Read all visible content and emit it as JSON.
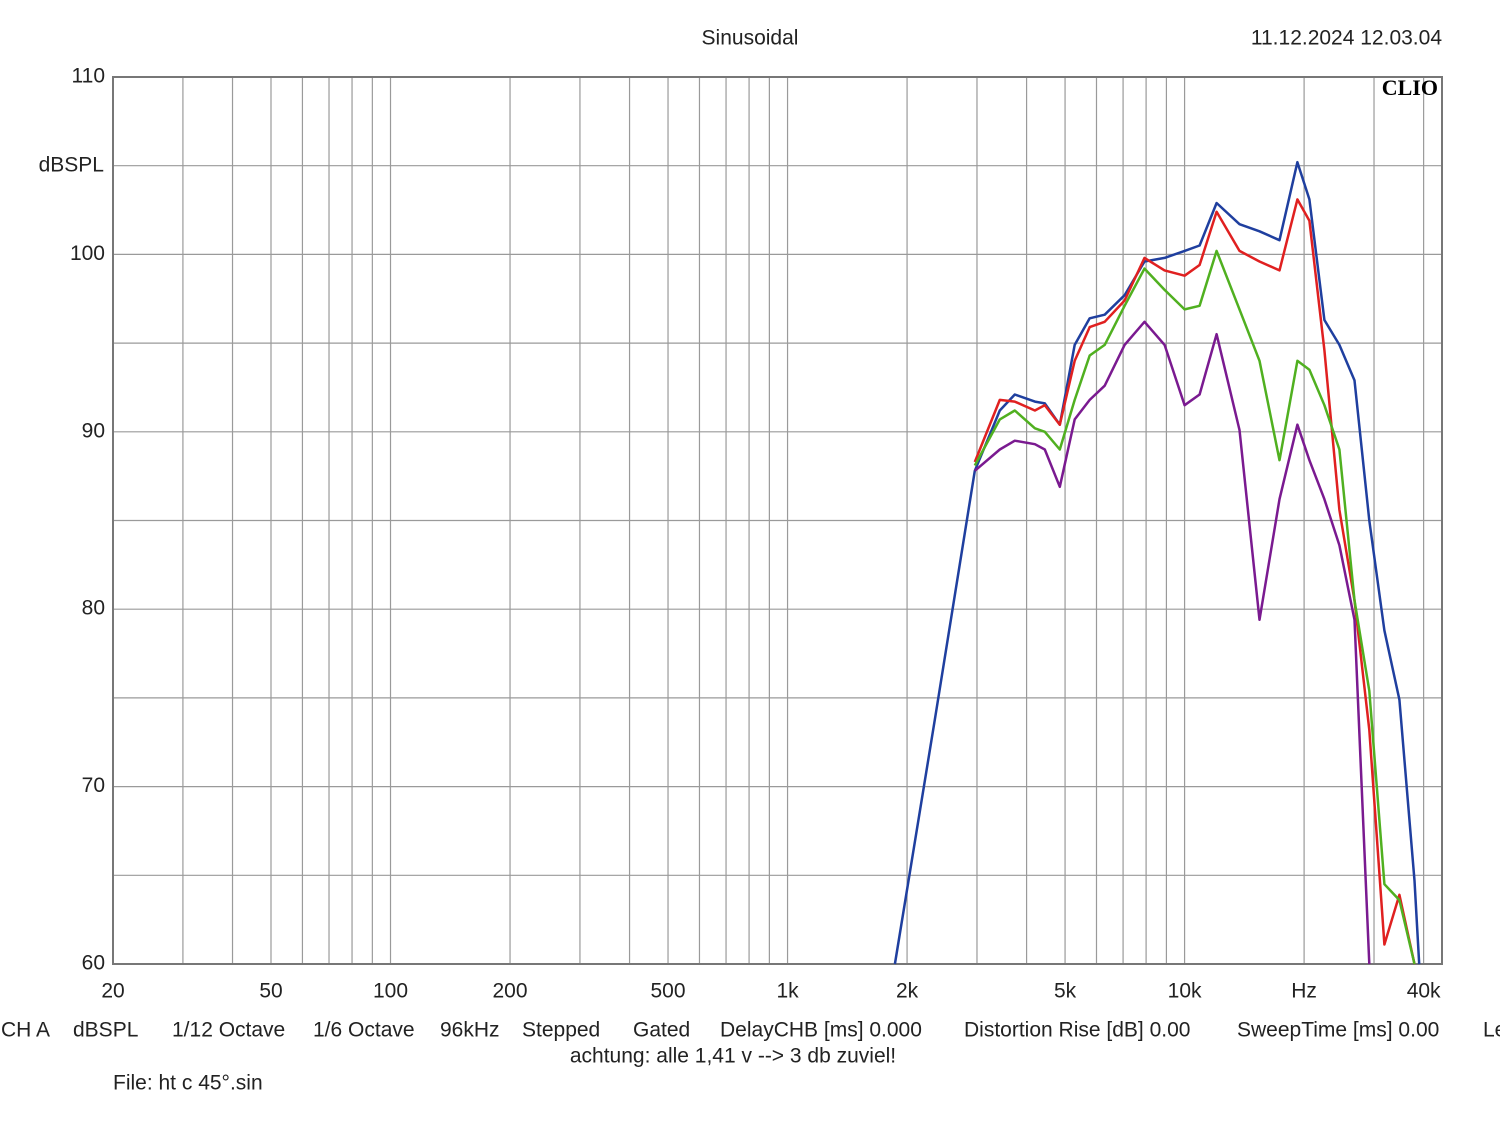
{
  "chart_data": {
    "type": "line",
    "title": "Sinusoidal",
    "date": "11.12.2024 12.03.04",
    "brand": "CLIO",
    "ylabel": "dBSPL",
    "xscale": "log",
    "grid": true,
    "xlim": [
      20,
      44500
    ],
    "ylim": [
      60,
      110
    ],
    "yticks": [
      60,
      70,
      80,
      90,
      100,
      110
    ],
    "yminor": [
      65,
      75,
      85,
      95,
      105
    ],
    "xticks": [
      20,
      50,
      100,
      200,
      500,
      {
        "value": 1000,
        "label": "1k"
      },
      {
        "value": 2000,
        "label": "2k"
      },
      {
        "value": 5000,
        "label": "5k"
      },
      {
        "value": 10000,
        "label": "10k"
      },
      {
        "value": 20000,
        "label": "Hz"
      },
      {
        "value": 40000,
        "label": "40k"
      }
    ],
    "xminor": [
      30,
      40,
      60,
      70,
      80,
      90,
      300,
      400,
      600,
      700,
      800,
      900,
      3000,
      4000,
      6000,
      7000,
      8000,
      9000,
      30000
    ],
    "x": [
      1864,
      2350,
      2963,
      3425,
      3735,
      4197,
      4446,
      4850,
      5287,
      5768,
      6293,
      7063,
      7925,
      8906,
      10000,
      10910,
      12040,
      13750,
      15440,
      17340,
      19240,
      20620,
      22500,
      24550,
      26790,
      29190,
      31860,
      34760,
      37930,
      38990
    ],
    "series": [
      {
        "color": "#1f3f9f",
        "values": [
          60,
          73.8,
          87.8,
          91.2,
          92.1,
          91.7,
          91.6,
          90.4,
          94.9,
          96.4,
          96.6,
          97.7,
          99.6,
          99.8,
          100.2,
          100.5,
          102.9,
          101.7,
          101.3,
          100.8,
          105.2,
          103.1,
          96.3,
          94.9,
          92.9,
          85.0,
          78.8,
          74.9,
          64.7,
          60
        ]
      },
      {
        "color": "#e02020",
        "values": [
          null,
          null,
          88.3,
          91.8,
          91.7,
          91.2,
          91.5,
          90.4,
          94.0,
          95.9,
          96.2,
          97.4,
          99.8,
          99.1,
          98.8,
          99.4,
          102.4,
          100.2,
          99.6,
          99.1,
          103.1,
          101.9,
          94.6,
          85.6,
          80.5,
          73.2,
          61.1,
          63.9,
          60,
          null
        ]
      },
      {
        "color": "#50b020",
        "values": [
          null,
          null,
          88.1,
          90.7,
          91.2,
          90.2,
          90.0,
          89.0,
          91.8,
          94.3,
          94.9,
          97.1,
          99.2,
          98.0,
          96.9,
          97.1,
          100.2,
          96.9,
          94.0,
          88.4,
          94.0,
          93.5,
          91.5,
          89.0,
          80.5,
          75.4,
          64.5,
          63.6,
          60,
          null
        ]
      },
      {
        "color": "#7a1a90",
        "values": [
          null,
          null,
          87.8,
          89.0,
          89.5,
          89.3,
          89.0,
          86.9,
          90.7,
          91.8,
          92.6,
          94.9,
          96.2,
          94.9,
          91.5,
          92.1,
          95.5,
          90.1,
          79.4,
          86.2,
          90.4,
          88.4,
          86.2,
          83.6,
          79.4,
          60,
          null,
          null,
          null,
          null
        ]
      }
    ],
    "footer": [
      "CH A",
      "dBSPL",
      "1/12 Octave",
      "1/6 Octave",
      "96kHz",
      "Stepped",
      "Gated",
      "DelayCHB [ms] 0.000",
      "Distortion Rise [dB] 0.00",
      "SweepTime [ms] 0.00",
      "Le"
    ],
    "note": "achtung: alle 1,41 v --> 3 db zuviel!",
    "file": "File: ht c 45°.sin"
  }
}
